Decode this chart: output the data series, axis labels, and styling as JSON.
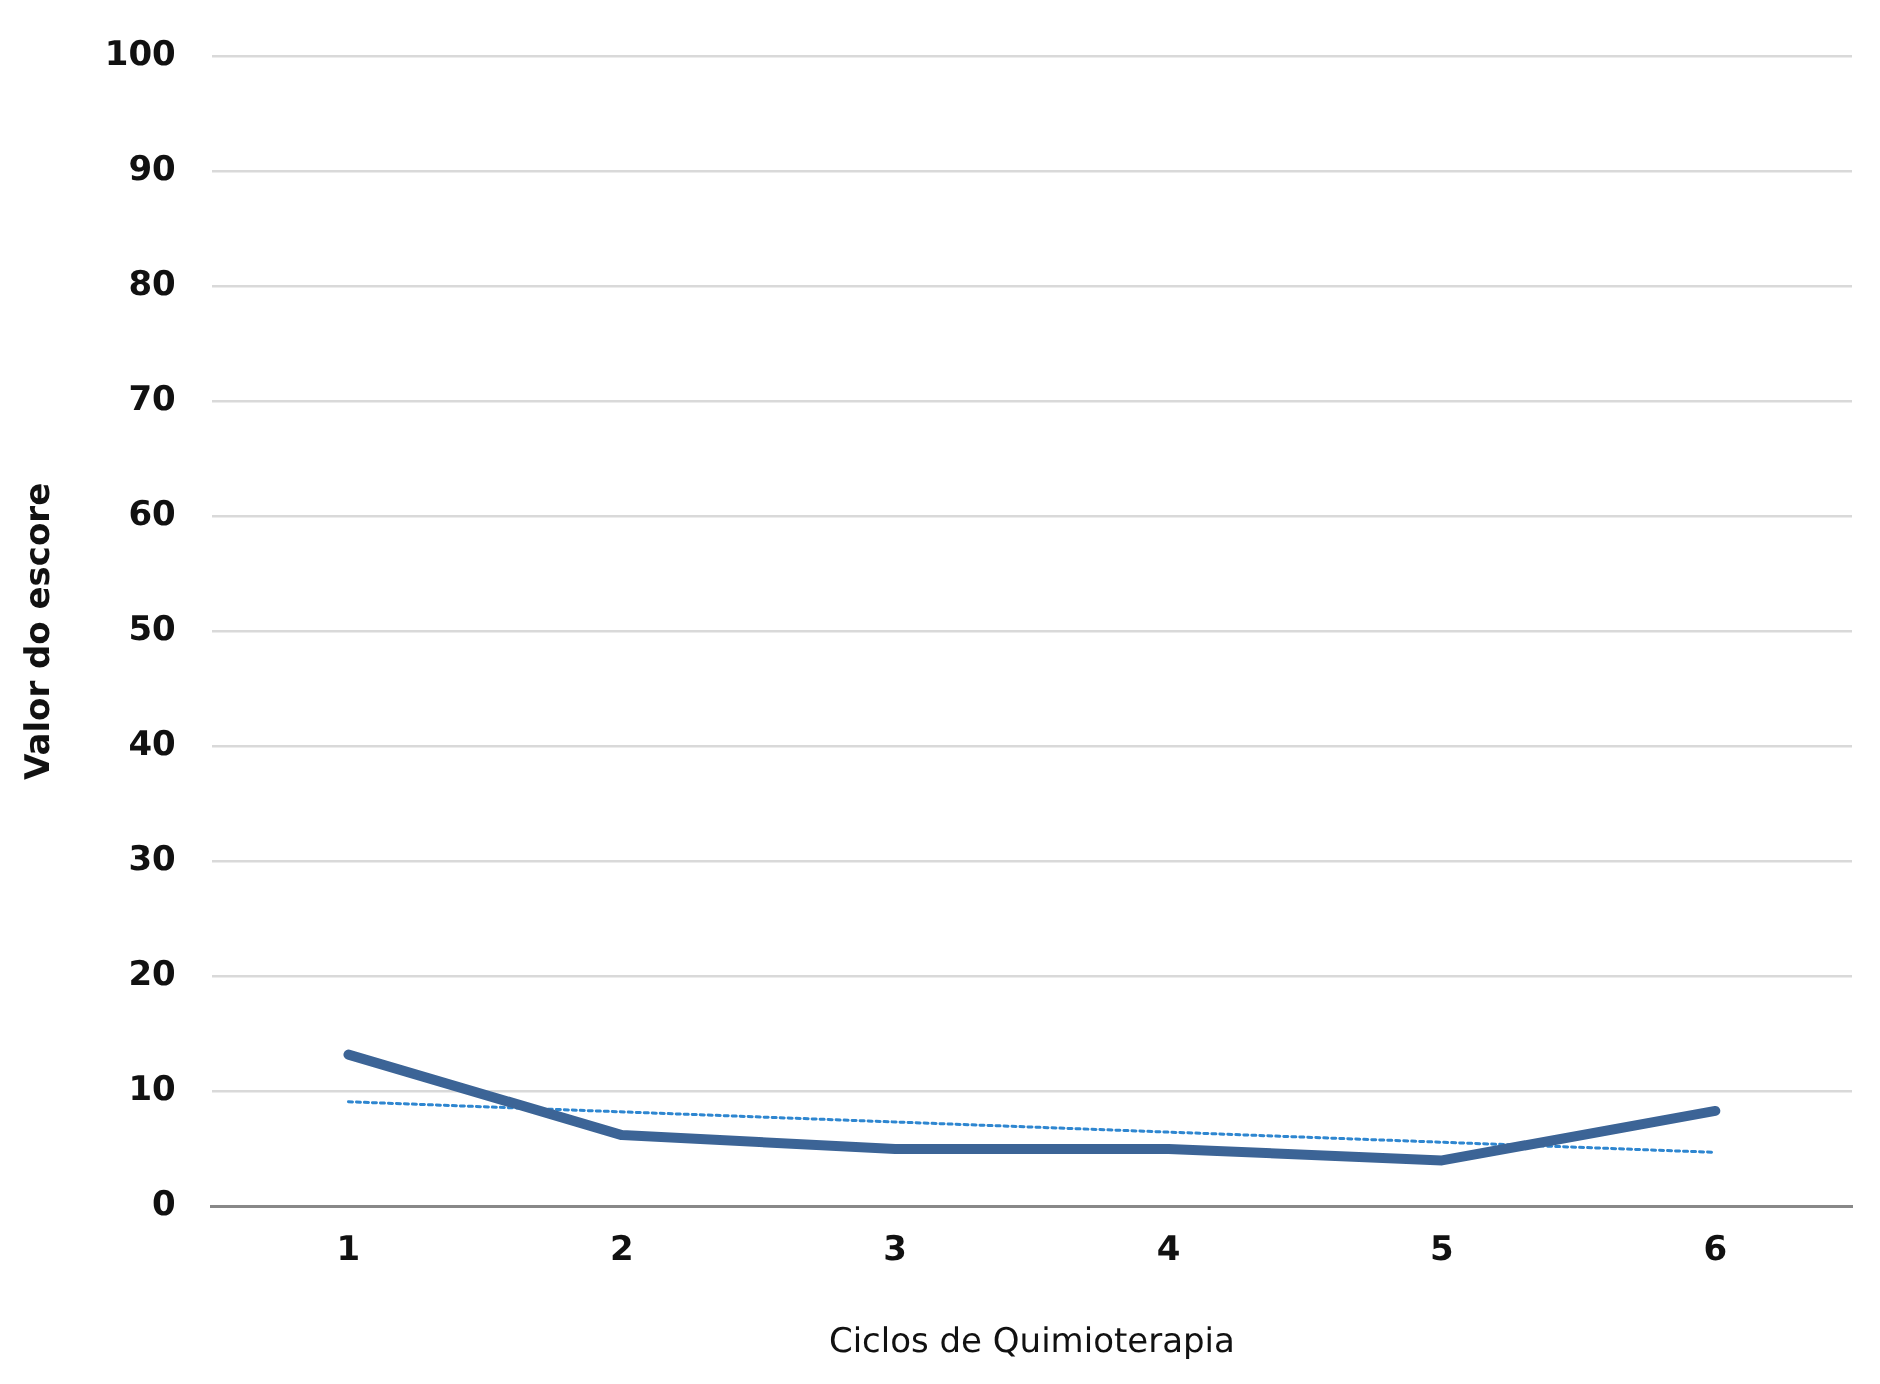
{
  "chart_data": {
    "type": "line",
    "xlabel": "Ciclos de Quimioterapia",
    "ylabel": "Valor do escore",
    "x": [
      1,
      2,
      3,
      4,
      5,
      6
    ],
    "xlim": [
      0.5,
      6.5
    ],
    "xticks": [
      1,
      2,
      3,
      4,
      5,
      6
    ],
    "ylim": [
      0,
      100
    ],
    "yticks": [
      0,
      10,
      20,
      30,
      40,
      50,
      60,
      70,
      80,
      90,
      100
    ],
    "grid": "y",
    "marker": "none",
    "series": [
      {
        "color": "#3c6496",
        "values": [
          13.2,
          6.2,
          5.0,
          5.0,
          4.0,
          8.3
        ],
        "line_style": "solid"
      },
      {
        "type": "line",
        "color": "#2e86d0",
        "x": [
          1,
          6
        ],
        "values": [
          9.1,
          4.7
        ],
        "line_style": "dotted"
      }
    ]
  }
}
